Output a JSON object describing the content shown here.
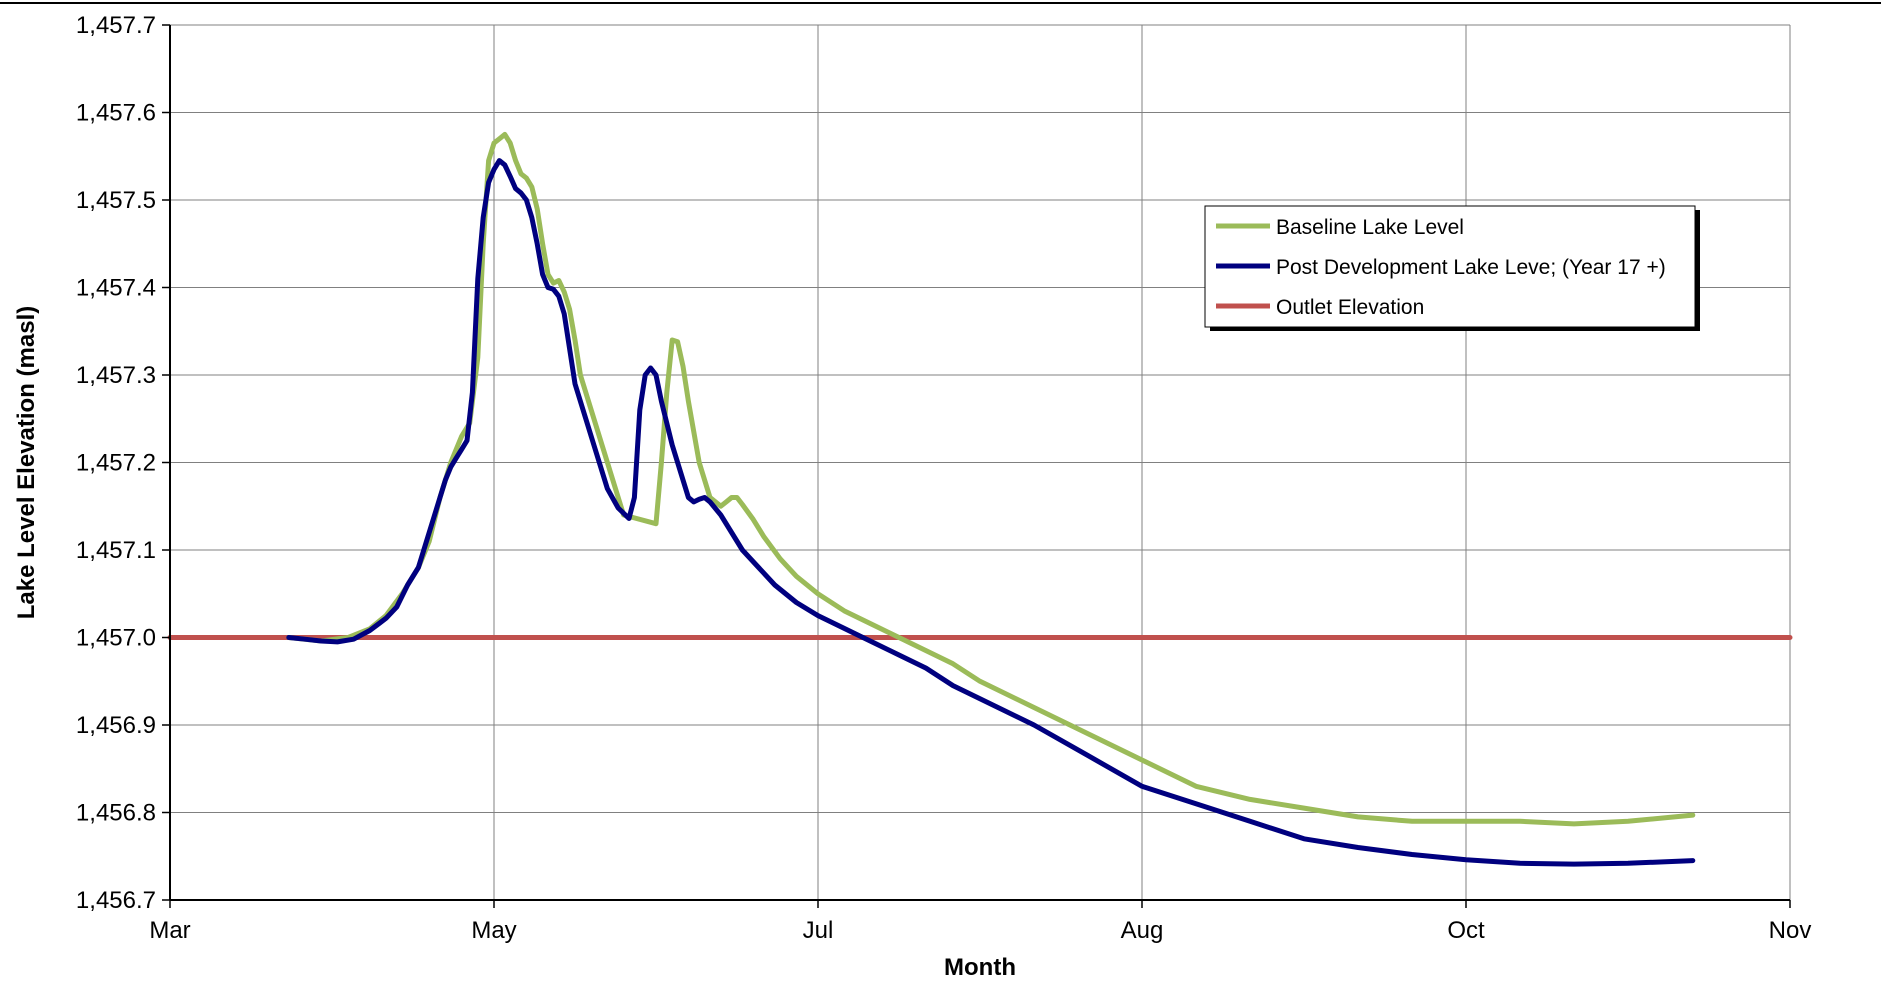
{
  "chart_data": {
    "type": "line",
    "title": "",
    "xlabel": "Month",
    "ylabel": "Lake Level Elevation (masl)",
    "xlim": [
      0,
      300
    ],
    "ylim": [
      1456.7,
      1457.7
    ],
    "x_ticks": [
      {
        "value": 0,
        "label": "Mar"
      },
      {
        "value": 60,
        "label": "May"
      },
      {
        "value": 120,
        "label": "Jul"
      },
      {
        "value": 180,
        "label": "Aug"
      },
      {
        "value": 240,
        "label": "Oct"
      },
      {
        "value": 300,
        "label": "Nov"
      }
    ],
    "y_ticks": [
      {
        "value": 1456.7,
        "label": "1,456.7"
      },
      {
        "value": 1456.8,
        "label": "1,456.8"
      },
      {
        "value": 1456.9,
        "label": "1,456.9"
      },
      {
        "value": 1457.0,
        "label": "1,457.0"
      },
      {
        "value": 1457.1,
        "label": "1,457.1"
      },
      {
        "value": 1457.2,
        "label": "1,457.2"
      },
      {
        "value": 1457.3,
        "label": "1,457.3"
      },
      {
        "value": 1457.4,
        "label": "1,457.4"
      },
      {
        "value": 1457.5,
        "label": "1,457.5"
      },
      {
        "value": 1457.6,
        "label": "1,457.6"
      },
      {
        "value": 1457.7,
        "label": "1,457.7"
      }
    ],
    "grid": true,
    "legend_position": "top-right",
    "series": [
      {
        "name": "Baseline Lake Level",
        "color": "#9BBB59",
        "points": [
          [
            22,
            1457.0
          ],
          [
            28,
            1456.996
          ],
          [
            33,
            1457.0
          ],
          [
            37,
            1457.01
          ],
          [
            40,
            1457.025
          ],
          [
            43,
            1457.05
          ],
          [
            46,
            1457.08
          ],
          [
            48,
            1457.11
          ],
          [
            50,
            1457.16
          ],
          [
            52,
            1457.2
          ],
          [
            54,
            1457.23
          ],
          [
            55.5,
            1457.245
          ],
          [
            57,
            1457.32
          ],
          [
            58,
            1457.45
          ],
          [
            59,
            1457.545
          ],
          [
            60,
            1457.565
          ],
          [
            61,
            1457.57
          ],
          [
            62,
            1457.575
          ],
          [
            63,
            1457.565
          ],
          [
            64,
            1457.545
          ],
          [
            65,
            1457.53
          ],
          [
            66,
            1457.525
          ],
          [
            67,
            1457.515
          ],
          [
            68,
            1457.49
          ],
          [
            69,
            1457.45
          ],
          [
            70,
            1457.415
          ],
          [
            71,
            1457.405
          ],
          [
            72,
            1457.408
          ],
          [
            73,
            1457.395
          ],
          [
            74,
            1457.375
          ],
          [
            75,
            1457.34
          ],
          [
            76,
            1457.3
          ],
          [
            78,
            1457.26
          ],
          [
            80,
            1457.22
          ],
          [
            82,
            1457.18
          ],
          [
            84,
            1457.14
          ],
          [
            90,
            1457.13
          ],
          [
            91,
            1457.2
          ],
          [
            92,
            1457.28
          ],
          [
            93,
            1457.34
          ],
          [
            94,
            1457.338
          ],
          [
            95,
            1457.31
          ],
          [
            96,
            1457.27
          ],
          [
            98,
            1457.2
          ],
          [
            100,
            1457.16
          ],
          [
            102,
            1457.15
          ],
          [
            103,
            1457.155
          ],
          [
            104,
            1457.16
          ],
          [
            105,
            1457.16
          ],
          [
            106,
            1457.152
          ],
          [
            108,
            1457.135
          ],
          [
            110,
            1457.115
          ],
          [
            113,
            1457.09
          ],
          [
            116,
            1457.07
          ],
          [
            120,
            1457.05
          ],
          [
            125,
            1457.03
          ],
          [
            130,
            1457.015
          ],
          [
            135,
            1457.0
          ],
          [
            140,
            1456.985
          ],
          [
            145,
            1456.97
          ],
          [
            150,
            1456.95
          ],
          [
            160,
            1456.92
          ],
          [
            170,
            1456.89
          ],
          [
            180,
            1456.86
          ],
          [
            190,
            1456.83
          ],
          [
            200,
            1456.815
          ],
          [
            210,
            1456.805
          ],
          [
            220,
            1456.795
          ],
          [
            230,
            1456.79
          ],
          [
            240,
            1456.79
          ],
          [
            250,
            1456.79
          ],
          [
            260,
            1456.787
          ],
          [
            270,
            1456.79
          ],
          [
            282,
            1456.797
          ]
        ]
      },
      {
        "name": "Post Development Lake Leve; (Year 17 +)",
        "color": "#00007F",
        "points": [
          [
            22,
            1457.0
          ],
          [
            25,
            1456.998
          ],
          [
            28,
            1456.996
          ],
          [
            31,
            1456.995
          ],
          [
            34,
            1456.998
          ],
          [
            37,
            1457.008
          ],
          [
            40,
            1457.022
          ],
          [
            42,
            1457.035
          ],
          [
            44,
            1457.06
          ],
          [
            46,
            1457.08
          ],
          [
            48,
            1457.12
          ],
          [
            50,
            1457.16
          ],
          [
            51,
            1457.18
          ],
          [
            52,
            1457.195
          ],
          [
            53,
            1457.205
          ],
          [
            54,
            1457.215
          ],
          [
            55,
            1457.225
          ],
          [
            56,
            1457.28
          ],
          [
            57,
            1457.41
          ],
          [
            58,
            1457.48
          ],
          [
            59,
            1457.52
          ],
          [
            60,
            1457.535
          ],
          [
            61,
            1457.545
          ],
          [
            62,
            1457.54
          ],
          [
            63,
            1457.527
          ],
          [
            64,
            1457.513
          ],
          [
            65,
            1457.508
          ],
          [
            66,
            1457.5
          ],
          [
            67,
            1457.48
          ],
          [
            68,
            1457.45
          ],
          [
            69,
            1457.415
          ],
          [
            70,
            1457.4
          ],
          [
            71,
            1457.398
          ],
          [
            72,
            1457.39
          ],
          [
            73,
            1457.37
          ],
          [
            74,
            1457.33
          ],
          [
            75,
            1457.29
          ],
          [
            77,
            1457.25
          ],
          [
            79,
            1457.21
          ],
          [
            81,
            1457.17
          ],
          [
            83,
            1457.148
          ],
          [
            85,
            1457.136
          ],
          [
            86,
            1457.16
          ],
          [
            87,
            1457.26
          ],
          [
            88,
            1457.3
          ],
          [
            89,
            1457.308
          ],
          [
            90,
            1457.3
          ],
          [
            91,
            1457.27
          ],
          [
            93,
            1457.22
          ],
          [
            95,
            1457.18
          ],
          [
            96,
            1457.16
          ],
          [
            97,
            1457.155
          ],
          [
            98,
            1457.158
          ],
          [
            99,
            1457.16
          ],
          [
            100,
            1457.155
          ],
          [
            102,
            1457.14
          ],
          [
            104,
            1457.12
          ],
          [
            106,
            1457.1
          ],
          [
            109,
            1457.08
          ],
          [
            112,
            1457.06
          ],
          [
            116,
            1457.04
          ],
          [
            120,
            1457.025
          ],
          [
            125,
            1457.01
          ],
          [
            130,
            1456.995
          ],
          [
            135,
            1456.98
          ],
          [
            140,
            1456.965
          ],
          [
            145,
            1456.945
          ],
          [
            150,
            1456.93
          ],
          [
            160,
            1456.9
          ],
          [
            170,
            1456.865
          ],
          [
            180,
            1456.83
          ],
          [
            190,
            1456.81
          ],
          [
            200,
            1456.79
          ],
          [
            210,
            1456.77
          ],
          [
            220,
            1456.76
          ],
          [
            230,
            1456.752
          ],
          [
            240,
            1456.746
          ],
          [
            250,
            1456.742
          ],
          [
            260,
            1456.741
          ],
          [
            270,
            1456.742
          ],
          [
            282,
            1456.745
          ]
        ]
      },
      {
        "name": "Outlet Elevation",
        "color": "#C0504D",
        "points": [
          [
            0,
            1457.0
          ],
          [
            300,
            1457.0
          ]
        ]
      }
    ]
  }
}
